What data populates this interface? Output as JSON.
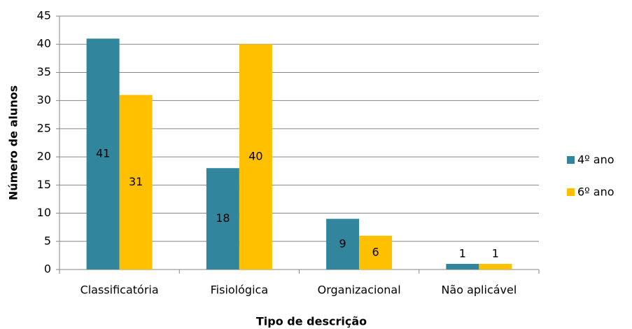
{
  "chart_data": {
    "type": "bar",
    "categories": [
      "Classificatória",
      "Fisiológica",
      "Organizacional",
      "Não aplicável"
    ],
    "series": [
      {
        "name": "4º ano",
        "color": "#31859c",
        "values": [
          41,
          18,
          9,
          1
        ]
      },
      {
        "name": "6º ano",
        "color": "#ffc000",
        "values": [
          31,
          40,
          6,
          1
        ]
      }
    ],
    "xlabel": "Tipo de descrição",
    "ylabel": "Número de alunos",
    "ylim": [
      0,
      45
    ],
    "yticks": [
      0,
      5,
      10,
      15,
      20,
      25,
      30,
      35,
      40,
      45
    ],
    "grid": true,
    "legend": "right"
  }
}
